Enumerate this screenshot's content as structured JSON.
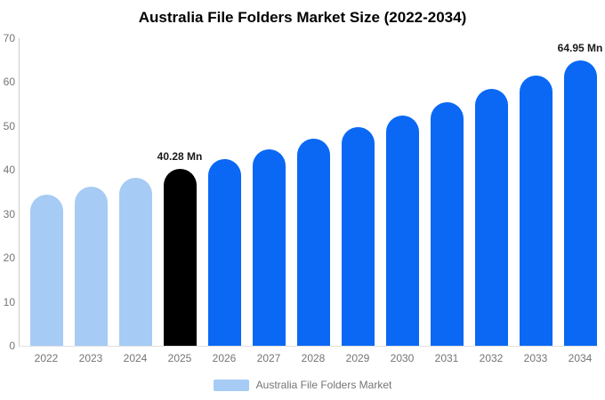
{
  "title": "Australia File Folders Market Size (2022-2034)",
  "colors": {
    "historical_bar": "#a6cbf4",
    "base_year_bar": "#000000",
    "forecast_bar": "#0a68f4",
    "axis_text": "#757575",
    "annotation_text": "#1a1a1a",
    "axis_line": "#cccccc",
    "background": "#ffffff"
  },
  "legend": {
    "label": "Australia File Folders Market",
    "swatch_color": "#a6cbf4"
  },
  "y_axis": {
    "ticks": [
      0,
      10,
      20,
      30,
      40,
      50,
      60,
      70
    ]
  },
  "chart_data": {
    "type": "bar",
    "title": "Australia File Folders Market Size (2022-2034)",
    "unit": "Mn",
    "categories": [
      "2022",
      "2023",
      "2024",
      "2025",
      "2026",
      "2027",
      "2028",
      "2029",
      "2030",
      "2031",
      "2032",
      "2033",
      "2034"
    ],
    "values": [
      34.4,
      36.2,
      38.2,
      40.28,
      42.5,
      44.8,
      47.2,
      49.8,
      52.5,
      55.4,
      58.4,
      61.6,
      64.95
    ],
    "bar_colors": [
      "#a6cbf4",
      "#a6cbf4",
      "#a6cbf4",
      "#000000",
      "#0a68f4",
      "#0a68f4",
      "#0a68f4",
      "#0a68f4",
      "#0a68f4",
      "#0a68f4",
      "#0a68f4",
      "#0a68f4",
      "#0a68f4"
    ],
    "annotations": [
      {
        "category": "2025",
        "text": "40.28 Mn"
      },
      {
        "category": "2034",
        "text": "64.95 Mn"
      }
    ],
    "xlabel": "",
    "ylabel": "",
    "ylim": [
      0,
      70
    ],
    "grid": false,
    "legend_entries": [
      "Australia File Folders Market"
    ],
    "legend_position": "bottom"
  }
}
